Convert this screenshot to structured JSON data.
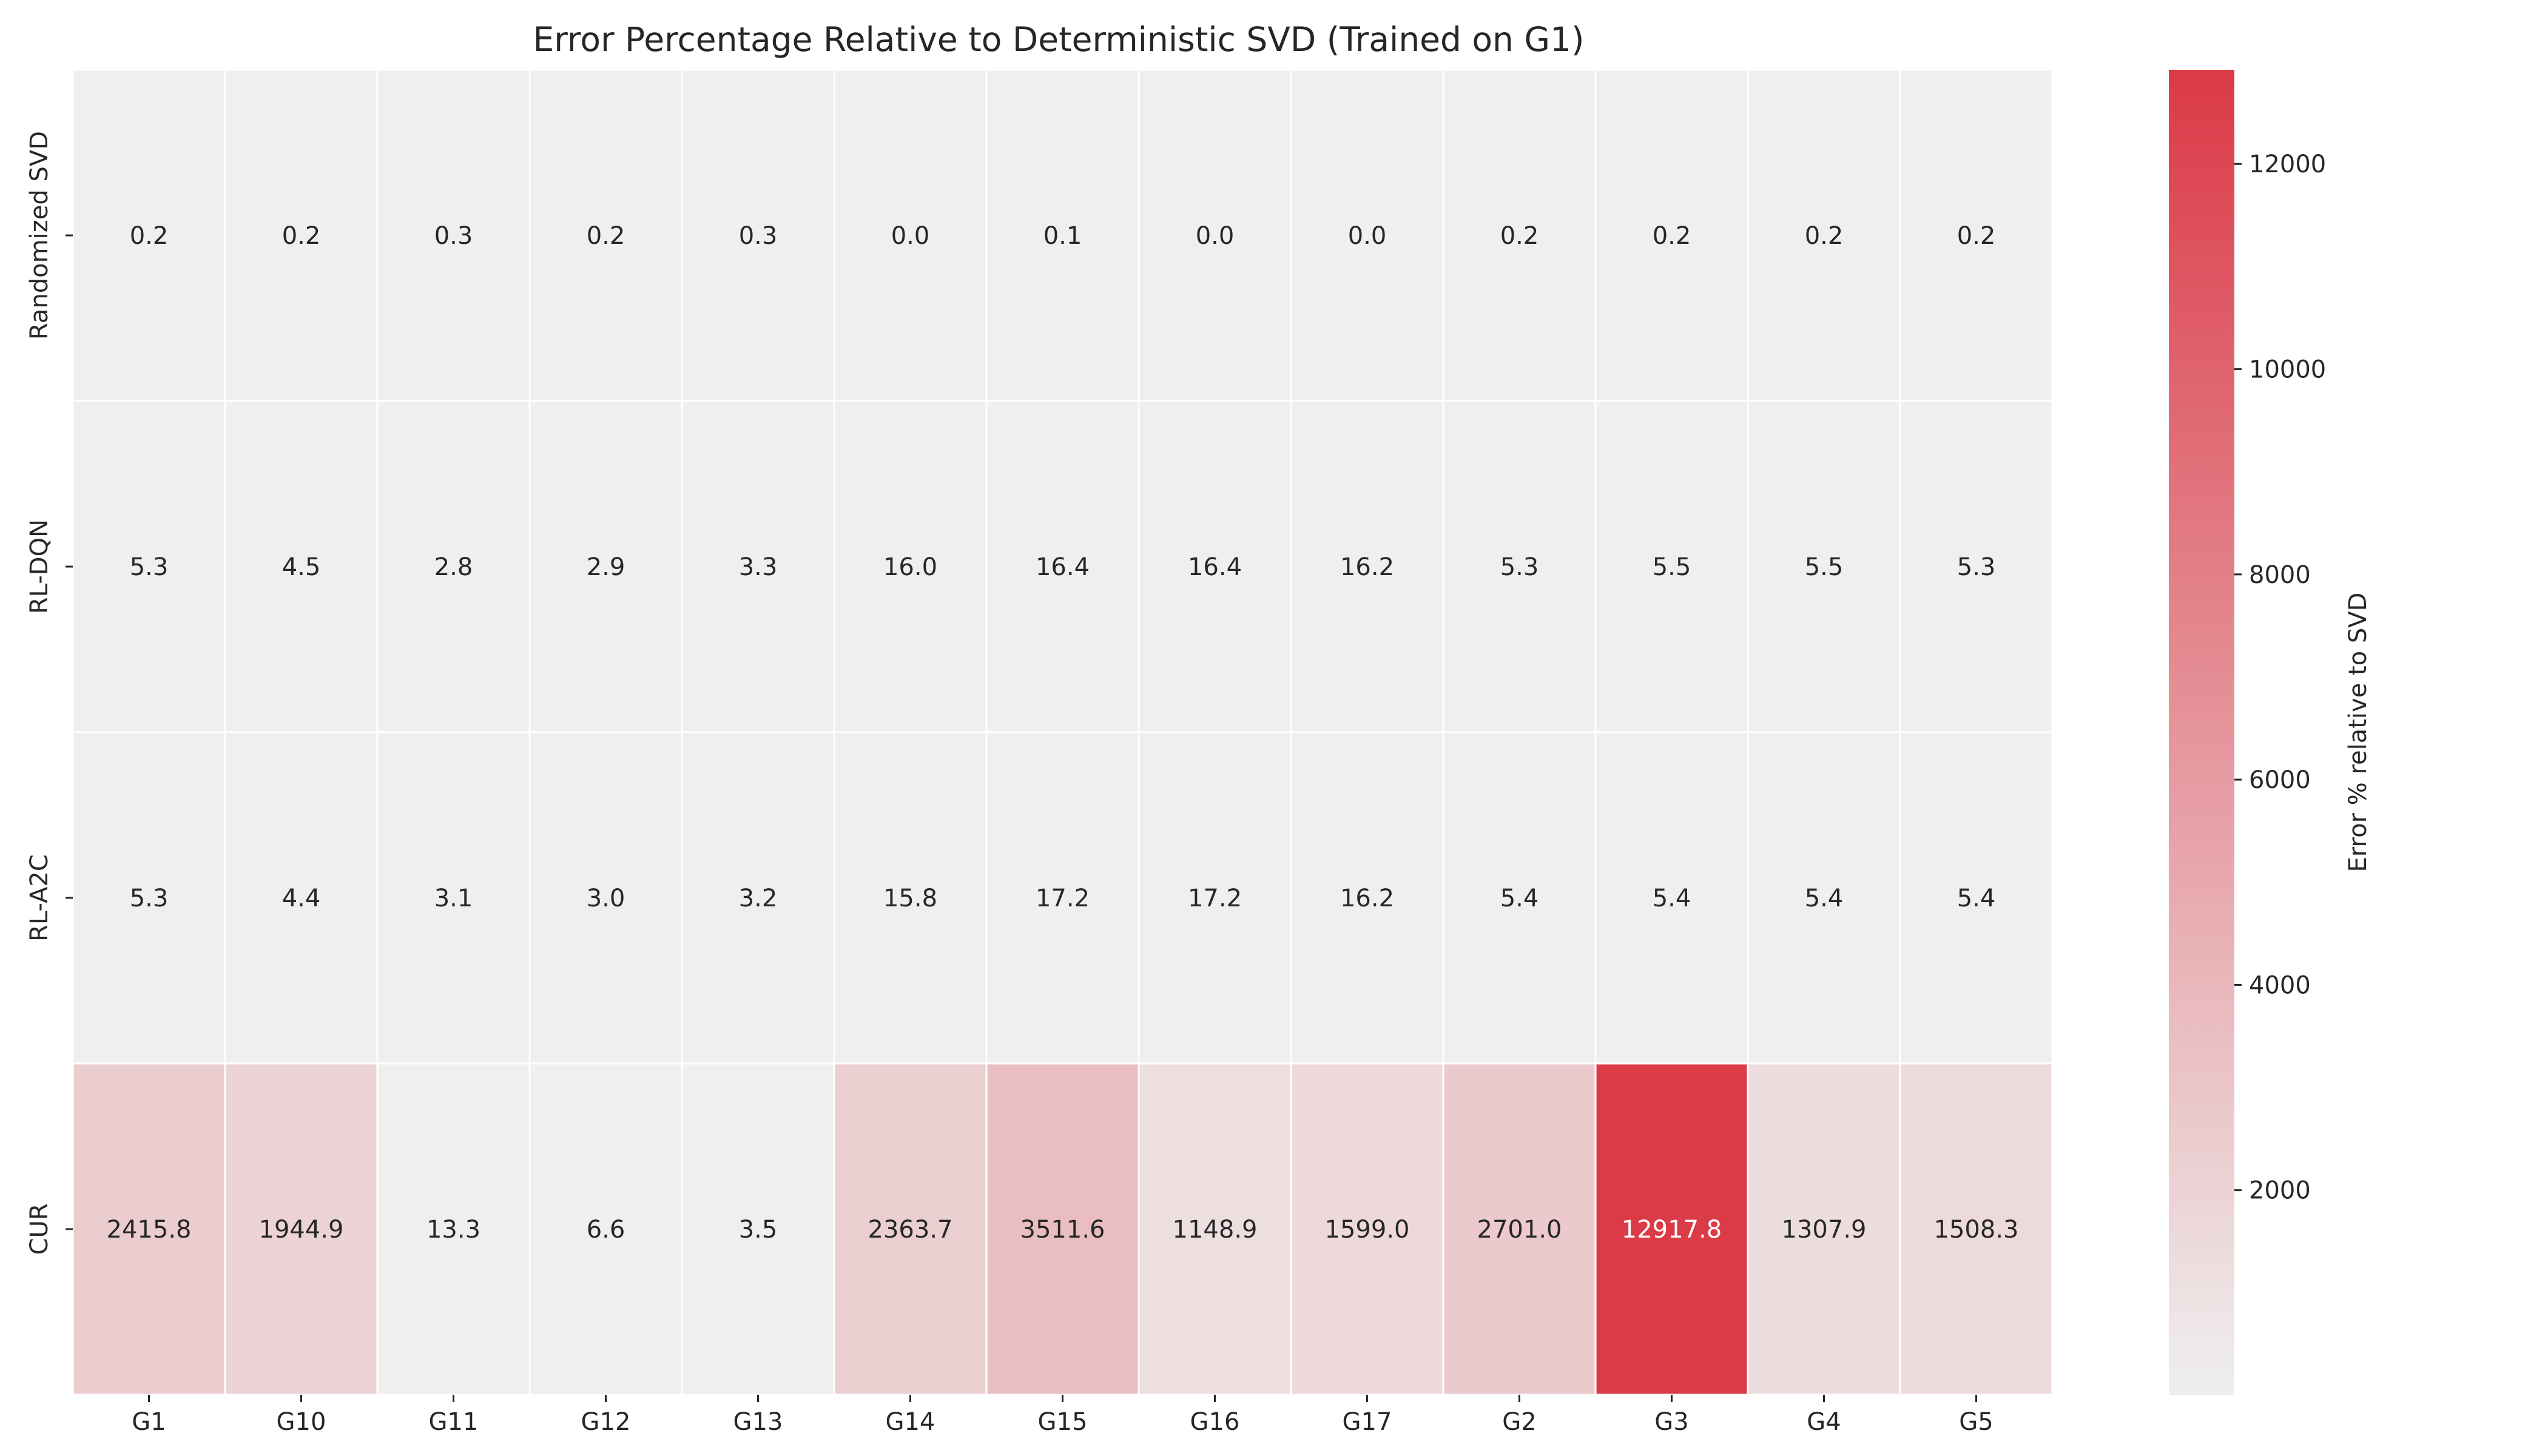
{
  "chart_data": {
    "type": "heatmap",
    "title": "Error Percentage Relative to Deterministic SVD (Trained on G1)",
    "xlabel": "",
    "ylabel": "",
    "x_categories": [
      "G1",
      "G10",
      "G11",
      "G12",
      "G13",
      "G14",
      "G15",
      "G16",
      "G17",
      "G2",
      "G3",
      "G4",
      "G5"
    ],
    "y_categories": [
      "Randomized SVD",
      "RL-DQN",
      "RL-A2C",
      "CUR"
    ],
    "values": [
      [
        0.2,
        0.2,
        0.3,
        0.2,
        0.3,
        0.0,
        0.1,
        0.0,
        0.0,
        0.2,
        0.2,
        0.2,
        0.2
      ],
      [
        5.3,
        4.5,
        2.8,
        2.9,
        3.3,
        16.0,
        16.4,
        16.4,
        16.2,
        5.3,
        5.5,
        5.5,
        5.3
      ],
      [
        5.3,
        4.4,
        3.1,
        3.0,
        3.2,
        15.8,
        17.2,
        17.2,
        16.2,
        5.4,
        5.4,
        5.4,
        5.4
      ],
      [
        2415.8,
        1944.9,
        13.3,
        6.6,
        3.5,
        2363.7,
        3511.6,
        1148.9,
        1599.0,
        2701.0,
        12917.8,
        1307.9,
        1508.3
      ]
    ],
    "value_format": "1 decimal",
    "colorbar": {
      "label": "Error % relative to SVD",
      "min": 0,
      "max": 12917.8,
      "ticks": [
        2000,
        4000,
        6000,
        8000,
        10000,
        12000
      ],
      "color_low": "#efefef",
      "color_high": "#db3a47"
    },
    "grid": false,
    "cell_border_color": "#ffffff",
    "annotation_dark_color": "#262626",
    "annotation_light_color": "#ffffff"
  }
}
